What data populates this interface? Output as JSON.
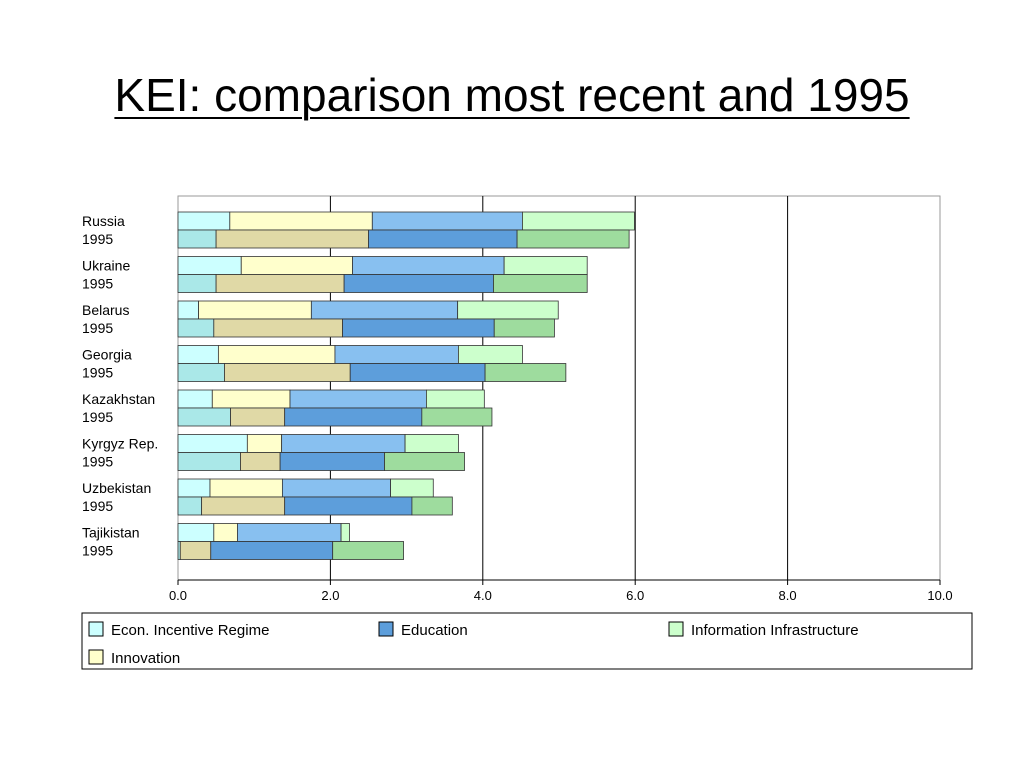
{
  "slide": {
    "title": "KEI: comparison most recent and 1995"
  },
  "chart_data": {
    "type": "bar",
    "orientation": "horizontal",
    "stacked": true,
    "xlim": [
      0,
      10
    ],
    "x_ticks": [
      "0.0",
      "2.0",
      "4.0",
      "6.0",
      "8.0",
      "10.0"
    ],
    "grid": true,
    "legend_position": "bottom",
    "categories": [
      {
        "country": "Russia",
        "year": "1995"
      },
      {
        "country": "Ukraine",
        "year": "1995"
      },
      {
        "country": "Belarus",
        "year": "1995"
      },
      {
        "country": "Georgia",
        "year": "1995"
      },
      {
        "country": "Kazakhstan",
        "year": "1995"
      },
      {
        "country": "Kyrgyz Rep.",
        "year": "1995"
      },
      {
        "country": "Uzbekistan",
        "year": "1995"
      },
      {
        "country": "Tajikistan",
        "year": "1995"
      }
    ],
    "series": [
      {
        "name": "Econ. Incentive Regime",
        "color_recent": "#ccffff",
        "color_1995": "#aae8e8",
        "recent": [
          0.68,
          0.83,
          0.27,
          0.53,
          0.45,
          0.91,
          0.42,
          0.47
        ],
        "y1995": [
          0.5,
          0.5,
          0.47,
          0.61,
          0.69,
          0.82,
          0.31,
          0.03
        ]
      },
      {
        "name": "Innovation",
        "color_recent": "#ffffcc",
        "color_1995": "#e0d9a6",
        "recent": [
          1.87,
          1.46,
          1.48,
          1.53,
          1.02,
          0.45,
          0.95,
          0.31
        ],
        "y1995": [
          2.0,
          1.68,
          1.69,
          1.65,
          0.71,
          0.52,
          1.09,
          0.4
        ]
      },
      {
        "name": "Education",
        "color_recent": "#88c0f0",
        "color_1995": "#5d9edb",
        "recent": [
          1.97,
          1.99,
          1.92,
          1.62,
          1.79,
          1.62,
          1.42,
          1.36
        ],
        "y1995": [
          1.95,
          1.96,
          1.99,
          1.77,
          1.8,
          1.37,
          1.67,
          1.6
        ]
      },
      {
        "name": "Information Infrastructure",
        "color_recent": "#ccffcc",
        "color_1995": "#9edc9e",
        "recent": [
          1.47,
          1.09,
          1.32,
          0.84,
          0.76,
          0.7,
          0.56,
          0.11
        ],
        "y1995": [
          1.47,
          1.23,
          0.79,
          1.06,
          0.92,
          1.05,
          0.53,
          0.93
        ]
      }
    ],
    "legend": [
      {
        "label": "Econ. Incentive Regime",
        "color": "#ccffff"
      },
      {
        "label": "Education",
        "color": "#5d9edb"
      },
      {
        "label": "Information Infrastructure",
        "color": "#ccffcc"
      },
      {
        "label": "Innovation",
        "color": "#ffffcc"
      }
    ]
  }
}
